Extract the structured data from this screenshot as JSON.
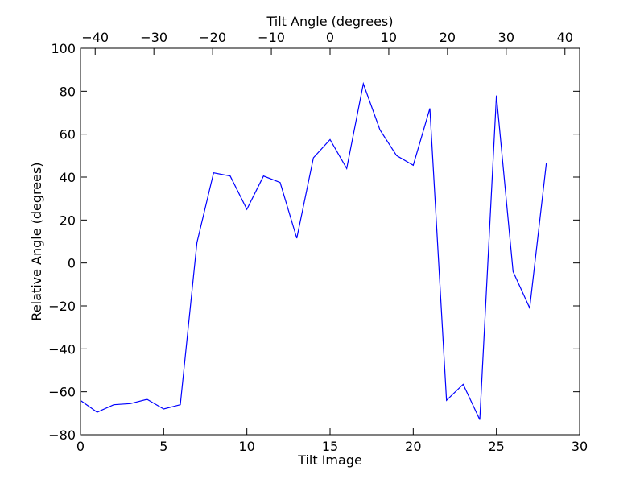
{
  "chart_data": {
    "type": "line",
    "xlabel": "Tilt Image",
    "ylabel": "Relative Angle (degrees)",
    "x2label": "Tilt Angle (degrees)",
    "xlim": [
      0,
      30
    ],
    "ylim": [
      -80,
      100
    ],
    "x2lim": [
      -42.5,
      42.5
    ],
    "xticks": [
      0,
      5,
      10,
      15,
      20,
      25,
      30
    ],
    "xtick_labels": [
      "0",
      "5",
      "10",
      "15",
      "20",
      "25",
      "30"
    ],
    "yticks": [
      -80,
      -60,
      -40,
      -20,
      0,
      20,
      40,
      60,
      80,
      100
    ],
    "ytick_labels": [
      "−80",
      "−60",
      "−40",
      "−20",
      "0",
      "20",
      "40",
      "60",
      "80",
      "100"
    ],
    "x2ticks": [
      -40,
      -30,
      -20,
      -10,
      0,
      10,
      20,
      30,
      40
    ],
    "x2tick_labels": [
      "−40",
      "−30",
      "−20",
      "−10",
      "0",
      "10",
      "20",
      "30",
      "40"
    ],
    "grid": false,
    "line_color": "#0000ff",
    "series": [
      {
        "x": [
          0,
          1,
          2,
          3,
          4,
          5,
          6,
          7,
          8,
          9,
          10,
          11,
          12,
          13,
          14,
          15,
          16,
          17,
          18,
          19,
          20,
          21,
          22,
          23,
          24,
          25,
          26,
          27,
          28
        ],
        "y": [
          -64,
          -69.5,
          -66,
          -65.5,
          -63.5,
          -68,
          -66,
          9.5,
          42,
          40.5,
          25,
          40.5,
          37.5,
          11.5,
          49,
          57.5,
          44,
          83.5,
          62,
          50,
          45.5,
          72,
          -64,
          -56.5,
          -73,
          78,
          -4,
          -21,
          46.5
        ]
      }
    ]
  }
}
